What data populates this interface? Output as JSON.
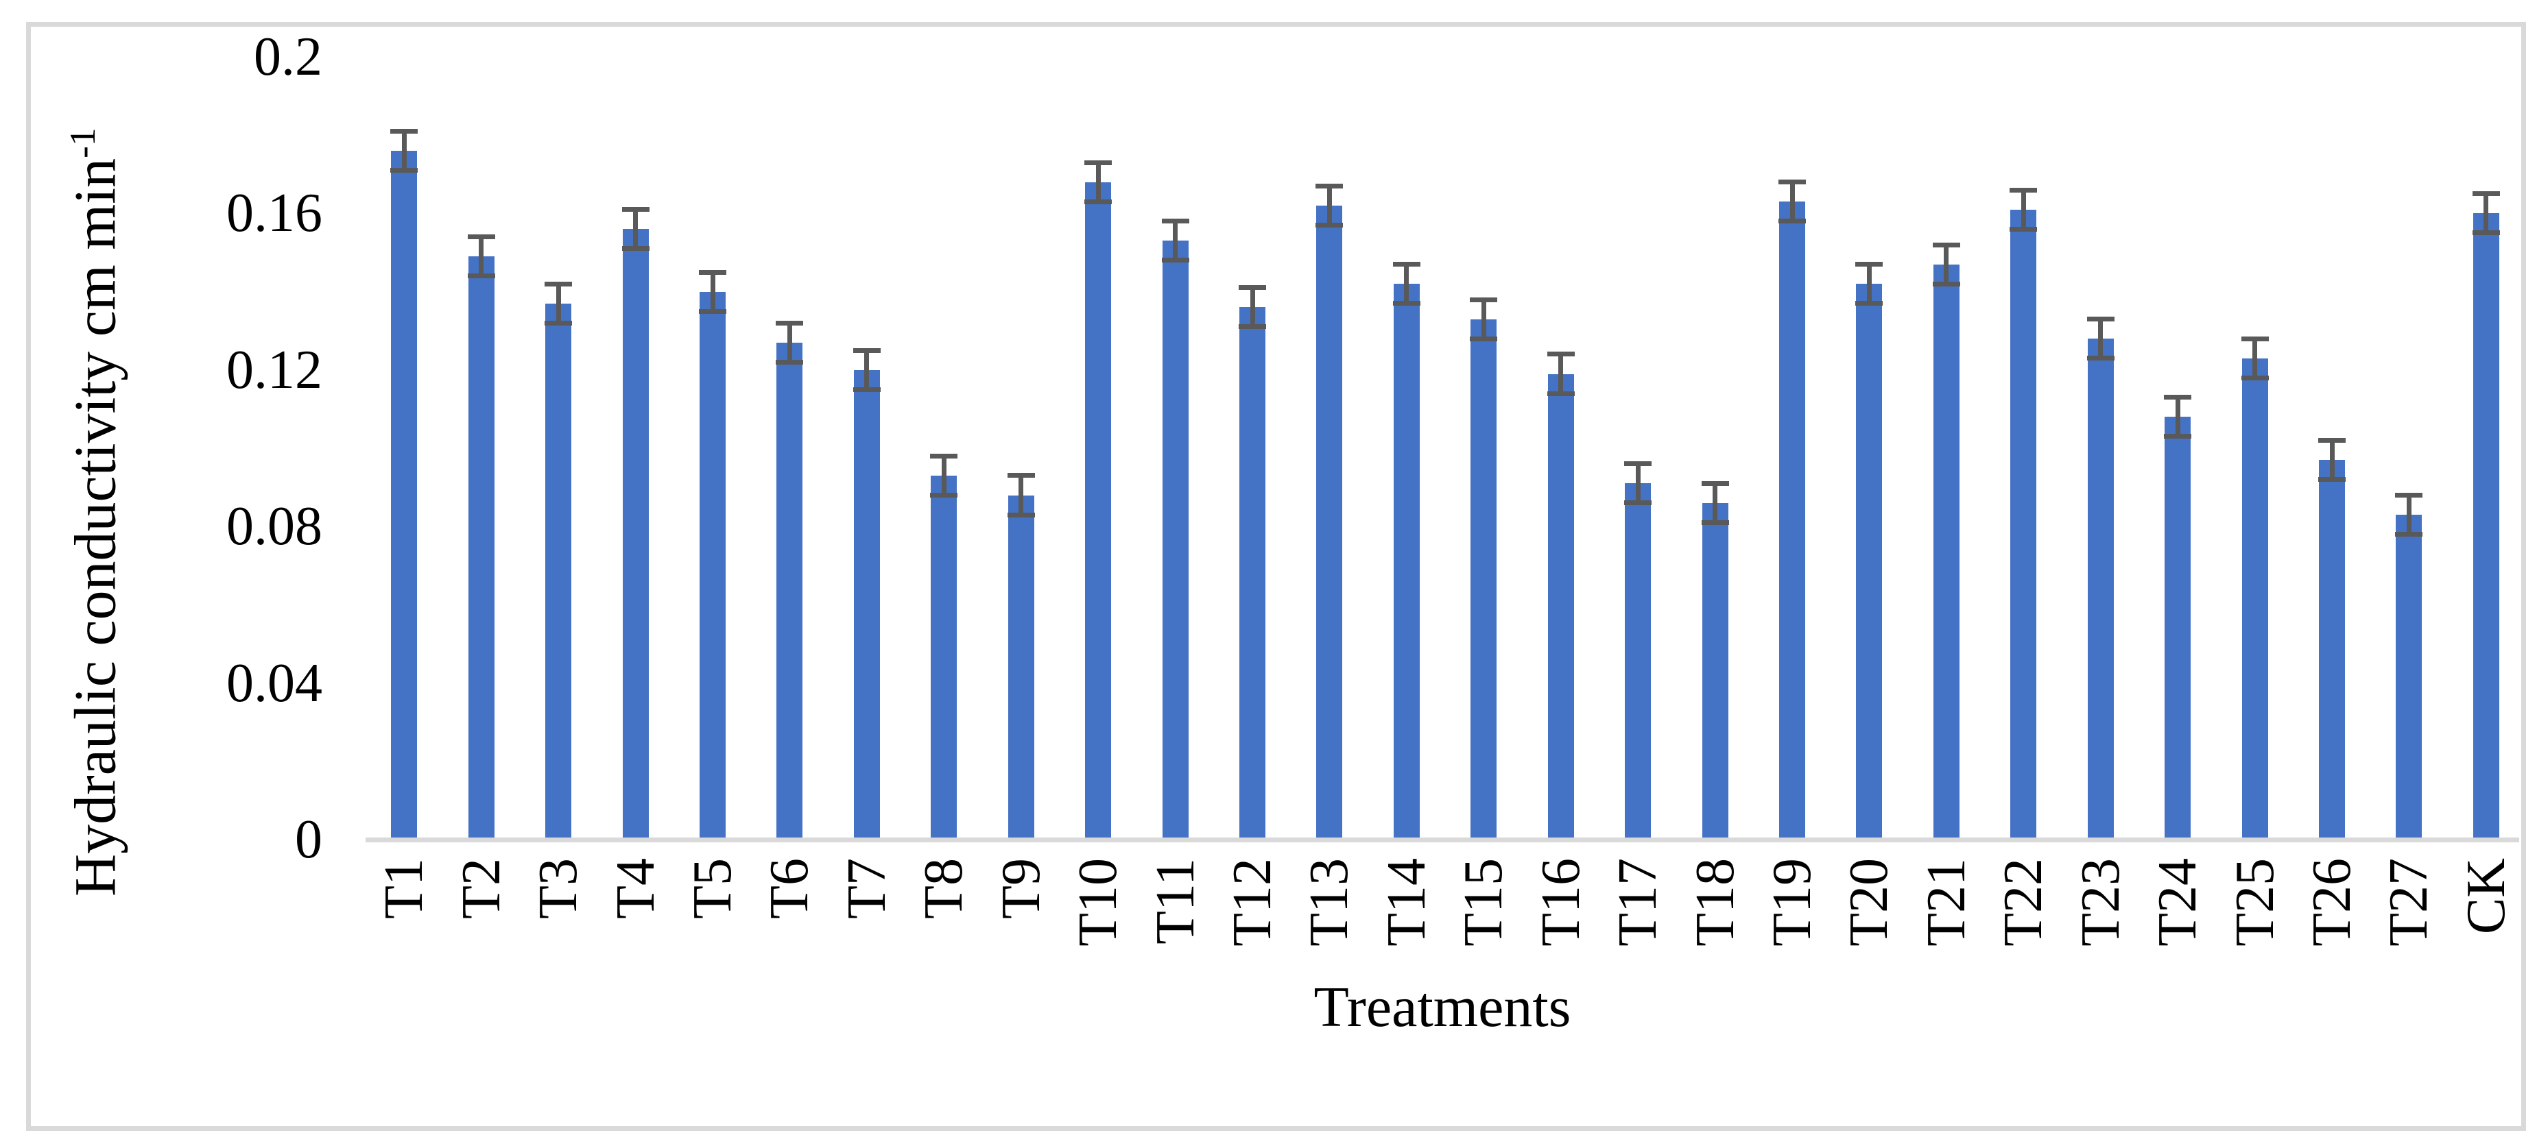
{
  "figure": {
    "background": "#ffffff",
    "border_color": "#d9d9d9"
  },
  "chart_data": {
    "type": "bar",
    "title": "",
    "categories": [
      "T1",
      "T2",
      "T3",
      "T4",
      "T5",
      "T6",
      "T7",
      "T8",
      "T9",
      "T10",
      "T11",
      "T12",
      "T13",
      "T14",
      "T15",
      "T16",
      "T17",
      "T18",
      "T19",
      "T20",
      "T21",
      "T22",
      "T23",
      "T24",
      "T25",
      "T26",
      "T27",
      "CK"
    ],
    "values": [
      0.176,
      0.149,
      0.137,
      0.156,
      0.14,
      0.127,
      0.12,
      0.093,
      0.088,
      0.168,
      0.153,
      0.136,
      0.162,
      0.142,
      0.133,
      0.119,
      0.091,
      0.086,
      0.163,
      0.142,
      0.147,
      0.161,
      0.128,
      0.108,
      0.123,
      0.097,
      0.083,
      0.16
    ],
    "errors": [
      0.005,
      0.005,
      0.005,
      0.005,
      0.005,
      0.005,
      0.005,
      0.005,
      0.005,
      0.005,
      0.005,
      0.005,
      0.005,
      0.005,
      0.005,
      0.005,
      0.005,
      0.005,
      0.005,
      0.005,
      0.005,
      0.005,
      0.005,
      0.005,
      0.005,
      0.005,
      0.005,
      0.005
    ],
    "xlabel": "Treatments",
    "ylabel": "Hydraulic conductivity cm min",
    "ylabel_superscript": "-1",
    "yticks": [
      0,
      0.04,
      0.08,
      0.12,
      0.16,
      0.2
    ],
    "ytick_labels": [
      "0",
      "0.04",
      "0.08",
      "0.12",
      "0.16",
      "0.2"
    ],
    "ylim": [
      0,
      0.2
    ],
    "grid": false,
    "legend_position": "none",
    "bar_color": "#4472c4",
    "error_bar_color": "#595959",
    "axis_line_color": "#d9d9d9"
  }
}
